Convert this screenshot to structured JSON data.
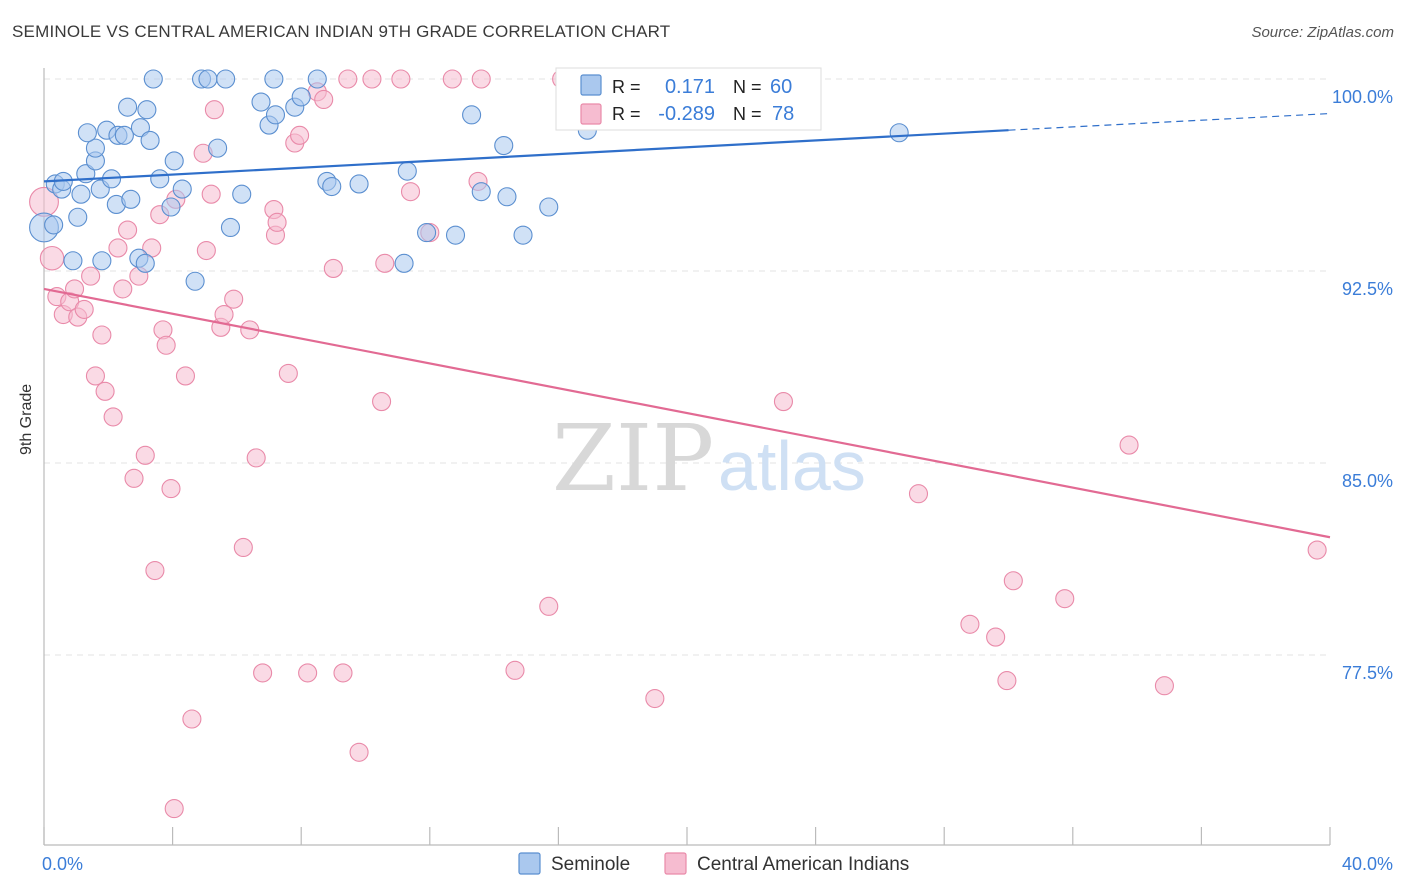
{
  "header": {
    "title": "SEMINOLE VS CENTRAL AMERICAN INDIAN 9TH GRADE CORRELATION CHART",
    "source": "Source: ZipAtlas.com"
  },
  "watermark": {
    "zip": "ZIP",
    "atlas": "atlas"
  },
  "legend_box": {
    "rows": [
      {
        "r_label": "R =",
        "r_value": "0.171",
        "n_label": "N =",
        "n_value": "60"
      },
      {
        "r_label": "R =",
        "r_value": "-0.289",
        "n_label": "N =",
        "n_value": "78"
      }
    ]
  },
  "colors": {
    "seminole_fill": "#aac8ee",
    "seminole_stroke": "#5b8fd0",
    "seminole_line": "#2f6fca",
    "cai_fill": "#f6bcd0",
    "cai_stroke": "#e98aa9",
    "cai_line": "#e26a93",
    "value_text": "#3b7dd8",
    "grid": "#e3e3e3"
  },
  "chart_data": {
    "type": "scatter",
    "title": "SEMINOLE VS CENTRAL AMERICAN INDIAN 9TH GRADE CORRELATION CHART",
    "xlabel": "",
    "ylabel": "9th Grade",
    "xlim": [
      0.0,
      40.0
    ],
    "ylim": [
      70.5,
      101.2
    ],
    "x_tick_labels": [
      {
        "value": 0.0,
        "label": "0.0%"
      },
      {
        "value": 40.0,
        "label": "40.0%"
      }
    ],
    "y_tick_labels": [
      {
        "value": 100.0,
        "label": "100.0%"
      },
      {
        "value": 92.5,
        "label": "92.5%"
      },
      {
        "value": 85.0,
        "label": "85.0%"
      },
      {
        "value": 77.5,
        "label": "77.5%"
      }
    ],
    "legend": [
      "Seminole",
      "Central American Indians"
    ],
    "series": [
      {
        "name": "Seminole",
        "R": 0.171,
        "N": 60,
        "trend": {
          "x0": 0.0,
          "y0": 96.0,
          "x1": 30.0,
          "y1": 98.0,
          "dashed_to_x": 40.0,
          "dashed_to_y": 98.65
        },
        "points": [
          [
            0.0,
            94.2,
            1.6
          ],
          [
            0.3,
            94.3,
            1.0
          ],
          [
            0.35,
            95.9,
            1.0
          ],
          [
            0.55,
            95.7,
            1.0
          ],
          [
            0.6,
            96.0,
            1.0
          ],
          [
            0.9,
            92.9,
            1.0
          ],
          [
            1.05,
            94.6,
            1.0
          ],
          [
            1.15,
            95.5,
            1.0
          ],
          [
            1.3,
            96.3,
            1.0
          ],
          [
            1.6,
            96.8,
            1.0
          ],
          [
            1.6,
            97.3,
            1.0
          ],
          [
            1.75,
            95.7,
            1.0
          ],
          [
            1.8,
            92.9,
            1.0
          ],
          [
            1.95,
            98.0,
            1.0
          ],
          [
            2.1,
            96.1,
            1.0
          ],
          [
            2.25,
            95.1,
            1.0
          ],
          [
            2.3,
            97.8,
            1.0
          ],
          [
            2.5,
            97.8,
            1.0
          ],
          [
            2.6,
            98.9,
            1.0
          ],
          [
            2.7,
            95.3,
            1.0
          ],
          [
            2.95,
            93.0,
            1.0
          ],
          [
            3.0,
            98.1,
            1.0
          ],
          [
            3.15,
            92.8,
            1.0
          ],
          [
            3.3,
            97.6,
            1.0
          ],
          [
            3.4,
            100.0,
            1.0
          ],
          [
            3.6,
            96.1,
            1.0
          ],
          [
            3.95,
            95.0,
            1.0
          ],
          [
            4.05,
            96.8,
            1.0
          ],
          [
            4.3,
            95.7,
            1.0
          ],
          [
            4.7,
            92.1,
            1.0
          ],
          [
            4.9,
            100.0,
            1.0
          ],
          [
            5.1,
            100.0,
            1.0
          ],
          [
            5.4,
            97.3,
            1.0
          ],
          [
            5.65,
            100.0,
            1.0
          ],
          [
            5.8,
            94.2,
            1.0
          ],
          [
            6.15,
            95.5,
            1.0
          ],
          [
            6.75,
            99.1,
            1.0
          ],
          [
            7.0,
            98.2,
            1.0
          ],
          [
            7.15,
            100.0,
            1.0
          ],
          [
            7.2,
            98.6,
            1.0
          ],
          [
            7.8,
            98.9,
            1.0
          ],
          [
            8.0,
            99.3,
            1.0
          ],
          [
            8.5,
            100.0,
            1.0
          ],
          [
            8.8,
            96.0,
            1.0
          ],
          [
            8.95,
            95.8,
            1.0
          ],
          [
            9.8,
            95.9,
            1.0
          ],
          [
            11.2,
            92.8,
            1.0
          ],
          [
            11.3,
            96.4,
            1.0
          ],
          [
            11.9,
            94.0,
            1.0
          ],
          [
            12.8,
            93.9,
            1.0
          ],
          [
            13.3,
            98.6,
            1.0
          ],
          [
            13.6,
            95.6,
            1.0
          ],
          [
            14.3,
            97.4,
            1.0
          ],
          [
            14.4,
            95.4,
            1.0
          ],
          [
            14.9,
            93.9,
            1.0
          ],
          [
            15.7,
            95.0,
            1.0
          ],
          [
            16.9,
            98.0,
            1.0
          ],
          [
            26.6,
            97.9,
            1.0
          ],
          [
            3.2,
            98.8,
            1.0
          ],
          [
            1.35,
            97.9,
            1.0
          ]
        ]
      },
      {
        "name": "Central American Indians",
        "R": -0.289,
        "N": 78,
        "trend": {
          "x0": 0.0,
          "y0": 91.8,
          "x1": 40.0,
          "y1": 82.1
        },
        "points": [
          [
            0.0,
            95.2,
            1.6
          ],
          [
            0.25,
            93.0,
            1.3
          ],
          [
            0.4,
            91.5,
            1.0
          ],
          [
            0.6,
            90.8,
            1.0
          ],
          [
            0.8,
            91.3,
            1.0
          ],
          [
            0.95,
            91.8,
            1.0
          ],
          [
            1.05,
            90.7,
            1.0
          ],
          [
            1.25,
            91.0,
            1.0
          ],
          [
            1.45,
            92.3,
            1.0
          ],
          [
            1.6,
            88.4,
            1.0
          ],
          [
            1.8,
            90.0,
            1.0
          ],
          [
            1.9,
            87.8,
            1.0
          ],
          [
            2.15,
            86.8,
            1.0
          ],
          [
            2.3,
            93.4,
            1.0
          ],
          [
            2.45,
            91.8,
            1.0
          ],
          [
            2.6,
            94.1,
            1.0
          ],
          [
            2.8,
            84.4,
            1.0
          ],
          [
            2.95,
            92.3,
            1.0
          ],
          [
            3.15,
            85.3,
            1.0
          ],
          [
            3.35,
            93.4,
            1.0
          ],
          [
            3.45,
            80.8,
            1.0
          ],
          [
            3.6,
            94.7,
            1.0
          ],
          [
            3.7,
            90.2,
            1.0
          ],
          [
            3.8,
            89.6,
            1.0
          ],
          [
            3.95,
            84.0,
            1.0
          ],
          [
            4.1,
            95.3,
            1.0
          ],
          [
            4.4,
            88.4,
            1.0
          ],
          [
            4.6,
            75.0,
            1.0
          ],
          [
            4.95,
            97.1,
            1.0
          ],
          [
            5.05,
            93.3,
            1.0
          ],
          [
            5.2,
            95.5,
            1.0
          ],
          [
            5.3,
            98.8,
            1.0
          ],
          [
            5.5,
            90.3,
            1.0
          ],
          [
            5.6,
            90.8,
            1.0
          ],
          [
            5.9,
            91.4,
            1.0
          ],
          [
            6.2,
            81.7,
            1.0
          ],
          [
            6.4,
            90.2,
            1.0
          ],
          [
            6.6,
            85.2,
            1.0
          ],
          [
            6.8,
            76.8,
            1.0
          ],
          [
            7.15,
            94.9,
            1.0
          ],
          [
            7.2,
            93.9,
            1.0
          ],
          [
            7.25,
            94.4,
            1.0
          ],
          [
            7.6,
            88.5,
            1.0
          ],
          [
            7.8,
            97.5,
            1.0
          ],
          [
            7.95,
            97.8,
            1.0
          ],
          [
            8.2,
            76.8,
            1.0
          ],
          [
            8.5,
            99.5,
            1.0
          ],
          [
            9.0,
            92.6,
            1.0
          ],
          [
            9.3,
            76.8,
            1.0
          ],
          [
            9.45,
            100.0,
            1.0
          ],
          [
            9.8,
            73.7,
            1.0
          ],
          [
            10.2,
            100.0,
            1.0
          ],
          [
            10.5,
            87.4,
            1.0
          ],
          [
            10.6,
            92.8,
            1.0
          ],
          [
            11.1,
            100.0,
            1.0
          ],
          [
            11.4,
            95.6,
            1.0
          ],
          [
            12.0,
            94.0,
            1.0
          ],
          [
            12.7,
            100.0,
            1.0
          ],
          [
            13.5,
            96.0,
            1.0
          ],
          [
            13.6,
            100.0,
            1.0
          ],
          [
            14.65,
            76.9,
            1.0
          ],
          [
            15.7,
            79.4,
            1.0
          ],
          [
            16.1,
            100.0,
            1.0
          ],
          [
            17.4,
            100.0,
            1.0
          ],
          [
            19.0,
            75.8,
            1.0
          ],
          [
            22.3,
            100.0,
            1.0
          ],
          [
            23.0,
            87.4,
            1.0
          ],
          [
            27.2,
            83.8,
            1.0
          ],
          [
            28.8,
            78.7,
            1.0
          ],
          [
            29.6,
            78.2,
            1.0
          ],
          [
            29.95,
            76.5,
            1.0
          ],
          [
            30.15,
            80.4,
            1.0
          ],
          [
            31.75,
            79.7,
            1.0
          ],
          [
            33.75,
            85.7,
            1.0
          ],
          [
            34.85,
            76.3,
            1.0
          ],
          [
            39.6,
            81.6,
            1.0
          ],
          [
            4.05,
            71.5,
            1.0
          ],
          [
            8.7,
            99.2,
            1.0
          ]
        ]
      }
    ]
  }
}
